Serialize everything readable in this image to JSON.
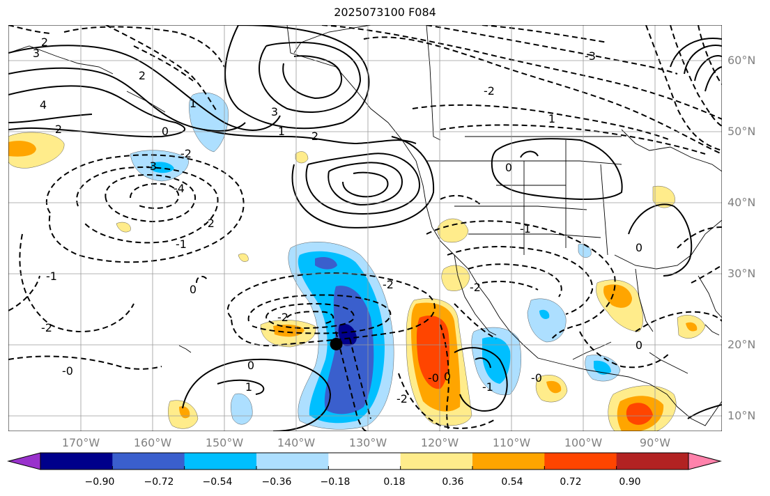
{
  "title": "2025073100 F084",
  "lat_labels": [
    "60°N",
    "50°N",
    "40°N",
    "30°N",
    "20°N",
    "10°N"
  ],
  "lon_labels": [
    "170°W",
    "160°W",
    "150°W",
    "140°W",
    "130°W",
    "120°W",
    "110°W",
    "100°W",
    "90°W"
  ],
  "colorbar": {
    "tick_labels": [
      "−0.90",
      "−0.72",
      "−0.54",
      "−0.36",
      "−0.18",
      "0.18",
      "0.36",
      "0.54",
      "0.72",
      "0.90"
    ],
    "colors": [
      "#9932CC",
      "#00008B",
      "#3A5FCD",
      "#00BFFF",
      "#ADDFFF",
      "#FFFFFF",
      "#FFEC8B",
      "#FFA500",
      "#FF4500",
      "#B22222",
      "#FF82AB"
    ]
  },
  "contour_labels": [
    "2",
    "3",
    "4",
    "2",
    "0",
    "1",
    "2",
    "3",
    "2",
    "-2",
    "-3",
    "-4",
    "-2",
    "-1",
    "1",
    "-2",
    "0",
    "-1",
    "-2",
    "-0",
    "-2",
    "-2",
    "0",
    "1",
    "-0",
    "0",
    "-1",
    "-3",
    "-2",
    "-0",
    "0",
    "-1",
    "1",
    "-2",
    "0",
    "0"
  ],
  "markers": [
    {
      "lon": -134.5,
      "lat": 20.1
    }
  ]
}
